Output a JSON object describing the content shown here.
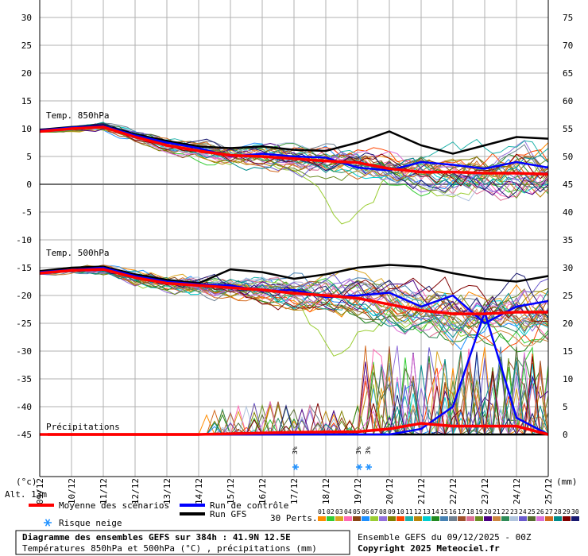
{
  "chart_data": {
    "type": "line",
    "title": "Diagramme des ensembles GEFS sur 384h : 41.9N 12.5E",
    "subtitle": "Températures 850hPa et 500hPa (°C) , précipitations (mm)",
    "run_info": "Ensemble GEFS du 09/12/2025 - 00Z",
    "copyright": "Copyright 2025 Meteociel.fr",
    "altitude": "Alt. 13m",
    "left_unit": "(°c)",
    "right_unit": "(mm)",
    "panel_labels": {
      "t850": "Temp. 850hPa",
      "t500": "Temp. 500hPa",
      "precip": "Précipitations"
    },
    "left_ticks": [
      30,
      25,
      20,
      15,
      10,
      5,
      0,
      -5,
      -10,
      -15,
      -20,
      -25,
      -30,
      -35,
      -40,
      -45
    ],
    "right_ticks": [
      75,
      70,
      65,
      60,
      55,
      50,
      45,
      40,
      35,
      30,
      25,
      20,
      15,
      10,
      5,
      0
    ],
    "left_range": [
      -45,
      30
    ],
    "right_range": [
      0,
      75
    ],
    "x_ticks": [
      "09/12",
      "10/12",
      "11/12",
      "12/12",
      "13/12",
      "14/12",
      "15/12",
      "16/12",
      "17/12",
      "18/12",
      "19/12",
      "20/12",
      "21/12",
      "22/12",
      "23/12",
      "24/12",
      "25/12"
    ],
    "legend": {
      "mean": "Moyenne des scénarios",
      "control": "Run de contrôle",
      "gfs": "Run GFS",
      "snow": "Risque neige",
      "perts": "30 Perts."
    },
    "member_labels": [
      "01",
      "02",
      "03",
      "04",
      "05",
      "06",
      "07",
      "08",
      "09",
      "10",
      "11",
      "12",
      "13",
      "14",
      "15",
      "16",
      "17",
      "18",
      "19",
      "20",
      "21",
      "22",
      "23",
      "24",
      "25",
      "26",
      "27",
      "28",
      "29",
      "30"
    ],
    "member_colors": [
      "#ff8c00",
      "#32cd32",
      "#daa520",
      "#ff69b4",
      "#8b4513",
      "#1e90ff",
      "#9acd32",
      "#9370db",
      "#808000",
      "#ff4500",
      "#20b2aa",
      "#b8860b",
      "#00ced1",
      "#228b22",
      "#4682b4",
      "#708090",
      "#a0522d",
      "#db7093",
      "#6b8e23",
      "#4b0082",
      "#cd853f",
      "#2e8b57",
      "#b0c4de",
      "#6a5acd",
      "#556b2f",
      "#da70d6",
      "#d2691e",
      "#008b8b",
      "#800000",
      "#191970"
    ],
    "snow_markers": [
      {
        "day": 8.05,
        "label": "3%"
      },
      {
        "day": 10.05,
        "label": "3%"
      },
      {
        "day": 10.35,
        "label": "3%"
      }
    ],
    "series": [
      {
        "name": "Moyenne des scénarios",
        "color": "#ff0000",
        "t850": [
          [
            0,
            9.5
          ],
          [
            1,
            10
          ],
          [
            2,
            10.3
          ],
          [
            3,
            8.5
          ],
          [
            4,
            7
          ],
          [
            5,
            6
          ],
          [
            6,
            5.2
          ],
          [
            7,
            5
          ],
          [
            8,
            4.6
          ],
          [
            9,
            4.2
          ],
          [
            10,
            3.9
          ],
          [
            11,
            2.8
          ],
          [
            12,
            2.2
          ],
          [
            13,
            2.2
          ],
          [
            14,
            2
          ],
          [
            15,
            2
          ],
          [
            16,
            1.8
          ]
        ],
        "t500": [
          [
            0,
            -16
          ],
          [
            1,
            -15.5
          ],
          [
            2,
            -15.3
          ],
          [
            3,
            -16.8
          ],
          [
            4,
            -17.8
          ],
          [
            5,
            -18.2
          ],
          [
            6,
            -18.6
          ],
          [
            7,
            -19
          ],
          [
            8,
            -19.6
          ],
          [
            9,
            -20
          ],
          [
            10,
            -20.5
          ],
          [
            11,
            -21.6
          ],
          [
            12,
            -22.7
          ],
          [
            13,
            -23.3
          ],
          [
            14,
            -23.3
          ],
          [
            15,
            -23
          ],
          [
            16,
            -23
          ]
        ],
        "precip": [
          [
            0,
            0
          ],
          [
            5,
            0
          ],
          [
            8,
            0.4
          ],
          [
            10,
            0.5
          ],
          [
            11,
            1
          ],
          [
            12,
            2
          ],
          [
            13,
            1.5
          ],
          [
            14,
            1.5
          ],
          [
            15,
            1.5
          ],
          [
            16,
            0
          ]
        ]
      },
      {
        "name": "Run de contrôle",
        "color": "#0000ff",
        "t850": [
          [
            0,
            9.7
          ],
          [
            1,
            10.2
          ],
          [
            2,
            10.5
          ],
          [
            3,
            8.8
          ],
          [
            4,
            7.5
          ],
          [
            5,
            6.5
          ],
          [
            6,
            5
          ],
          [
            7,
            5.5
          ],
          [
            8,
            5
          ],
          [
            9,
            4.8
          ],
          [
            10,
            3
          ],
          [
            11,
            2.5
          ],
          [
            12,
            4
          ],
          [
            13,
            3.5
          ],
          [
            14,
            2.8
          ],
          [
            15,
            4
          ],
          [
            16,
            3
          ]
        ],
        "t500": [
          [
            0,
            -15.8
          ],
          [
            1,
            -15.4
          ],
          [
            2,
            -15
          ],
          [
            3,
            -16.5
          ],
          [
            4,
            -17.5
          ],
          [
            5,
            -18
          ],
          [
            6,
            -18.2
          ],
          [
            7,
            -19.2
          ],
          [
            8,
            -19
          ],
          [
            9,
            -20.3
          ],
          [
            10,
            -20
          ],
          [
            11,
            -19.5
          ],
          [
            12,
            -22
          ],
          [
            13,
            -20
          ],
          [
            14,
            -25
          ],
          [
            15,
            -22
          ],
          [
            16,
            -21
          ]
        ],
        "precip": [
          [
            0,
            0
          ],
          [
            11,
            0
          ],
          [
            12,
            1
          ],
          [
            13,
            5
          ],
          [
            14,
            22
          ],
          [
            15,
            3
          ],
          [
            16,
            0
          ]
        ]
      },
      {
        "name": "Run GFS",
        "color": "#000000",
        "t850": [
          [
            0,
            9.8
          ],
          [
            1,
            10.3
          ],
          [
            2,
            10.6
          ],
          [
            3,
            9
          ],
          [
            4,
            7.8
          ],
          [
            5,
            6.8
          ],
          [
            6,
            6.5
          ],
          [
            7,
            6.8
          ],
          [
            8,
            6.2
          ],
          [
            9,
            6
          ],
          [
            10,
            7.5
          ],
          [
            11,
            9.5
          ],
          [
            12,
            7
          ],
          [
            13,
            5.5
          ],
          [
            14,
            7
          ],
          [
            15,
            8.5
          ],
          [
            16,
            8.2
          ]
        ],
        "t500": [
          [
            0,
            -15.6
          ],
          [
            1,
            -15
          ],
          [
            2,
            -14.8
          ],
          [
            3,
            -16.2
          ],
          [
            4,
            -17.2
          ],
          [
            5,
            -17.8
          ],
          [
            6,
            -15.3
          ],
          [
            7,
            -15.8
          ],
          [
            8,
            -17
          ],
          [
            9,
            -16.2
          ],
          [
            10,
            -15
          ],
          [
            11,
            -14.5
          ],
          [
            12,
            -14.8
          ],
          [
            13,
            -16
          ],
          [
            14,
            -17
          ],
          [
            15,
            -17.5
          ],
          [
            16,
            -16.5
          ]
        ],
        "precip": [
          [
            0,
            0
          ],
          [
            16,
            0
          ]
        ]
      }
    ]
  }
}
